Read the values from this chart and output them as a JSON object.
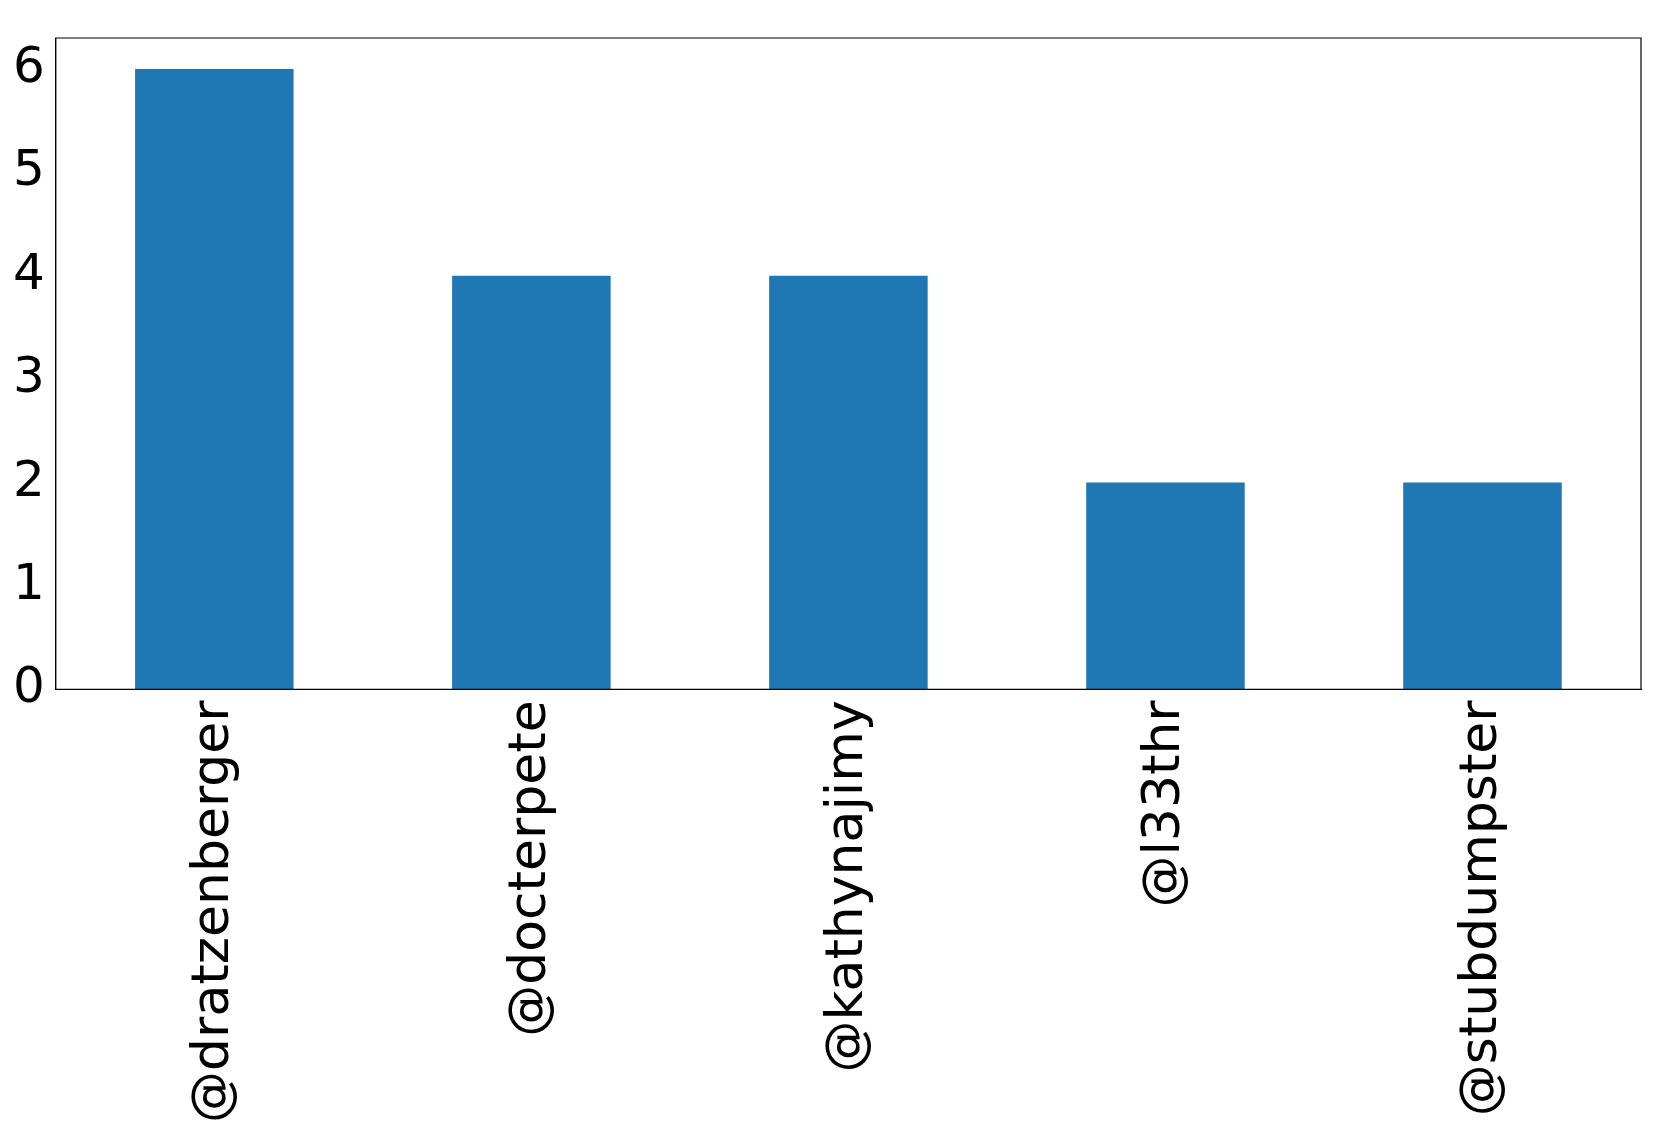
{
  "chart_data": {
    "type": "bar",
    "categories": [
      "@dratzenberger",
      "@docterpete",
      "@kathynajimy",
      "@l33thr",
      "@stubdumpster"
    ],
    "values": [
      6,
      4,
      4,
      2,
      2
    ],
    "color": "#1f77b4",
    "ylim": [
      0,
      6.3
    ],
    "yticks": [
      0,
      1,
      2,
      3,
      4,
      5,
      6
    ],
    "grid": false,
    "legend": false
  }
}
